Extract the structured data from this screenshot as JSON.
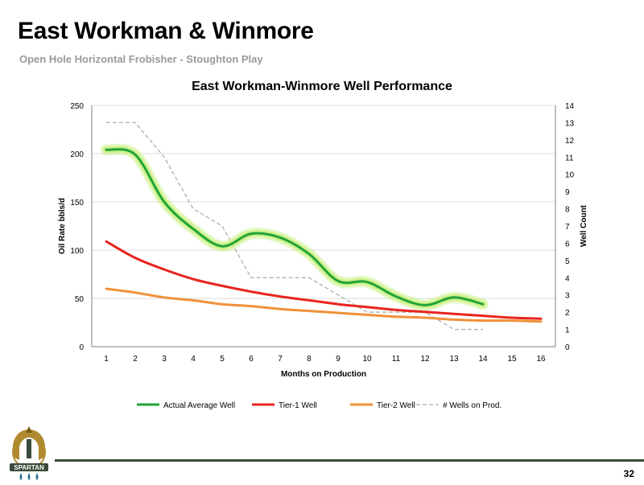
{
  "slide": {
    "title": "East Workman & Winmore",
    "subtitle": "Open Hole Horizontal Frobisher - Stoughton Play",
    "page_number": "32",
    "logo_text": "SPARTAN"
  },
  "chart_data": {
    "type": "line",
    "title": "East Workman-Winmore Well Performance",
    "xlabel": "Months on Production",
    "ylabel": "Oil Rate bbls/d",
    "y2label": "Well Count",
    "categories": [
      "1",
      "2",
      "3",
      "4",
      "5",
      "6",
      "7",
      "8",
      "9",
      "10",
      "11",
      "12",
      "13",
      "14",
      "15",
      "16"
    ],
    "x": [
      1,
      2,
      3,
      4,
      5,
      6,
      7,
      8,
      9,
      10,
      11,
      12,
      13,
      14,
      15,
      16
    ],
    "ylim": [
      0,
      250
    ],
    "yticks": [
      "0",
      "50",
      "100",
      "150",
      "200",
      "250"
    ],
    "y2lim": [
      0,
      14
    ],
    "y2ticks": [
      "0",
      "1",
      "2",
      "3",
      "4",
      "5",
      "6",
      "7",
      "8",
      "9",
      "10",
      "11",
      "12",
      "13",
      "14"
    ],
    "grid": true,
    "legend_position": "bottom",
    "series": [
      {
        "name": "Actual Average Well",
        "axis": "left",
        "color": "#22a33a",
        "glow": "#c6f07a",
        "style": "solid",
        "x": [
          1,
          2,
          3,
          4,
          5,
          6,
          7,
          8,
          9,
          10,
          11,
          12,
          13,
          14
        ],
        "values": [
          204,
          199,
          150,
          122,
          104,
          117,
          113,
          96,
          68,
          67,
          52,
          43,
          51,
          44
        ]
      },
      {
        "name": "Tier-1 Well",
        "axis": "left",
        "color": "#e8251f",
        "style": "solid",
        "x": [
          1,
          2,
          3,
          4,
          5,
          6,
          7,
          8,
          9,
          10,
          11,
          12,
          13,
          14,
          15,
          16
        ],
        "values": [
          109,
          92,
          80,
          70,
          63,
          57,
          52,
          48,
          44,
          41,
          38,
          36,
          34,
          32,
          30,
          29
        ]
      },
      {
        "name": "Tier-2 Well",
        "axis": "left",
        "color": "#f0913a",
        "style": "solid",
        "x": [
          1,
          2,
          3,
          4,
          5,
          6,
          7,
          8,
          9,
          10,
          11,
          12,
          13,
          14,
          15,
          16
        ],
        "values": [
          60,
          56,
          51,
          48,
          44,
          42,
          39,
          37,
          35,
          33,
          31,
          30,
          28,
          27,
          27,
          26
        ]
      },
      {
        "name": "# Wells on Prod.",
        "axis": "right",
        "color": "#b8b8b8",
        "style": "dashed",
        "x": [
          1,
          2,
          3,
          4,
          5,
          6,
          7,
          8,
          9,
          10,
          11,
          12,
          13,
          14
        ],
        "values": [
          13,
          13,
          11,
          8,
          7,
          4,
          4,
          4,
          3,
          2,
          2,
          2,
          1,
          1
        ]
      }
    ]
  }
}
